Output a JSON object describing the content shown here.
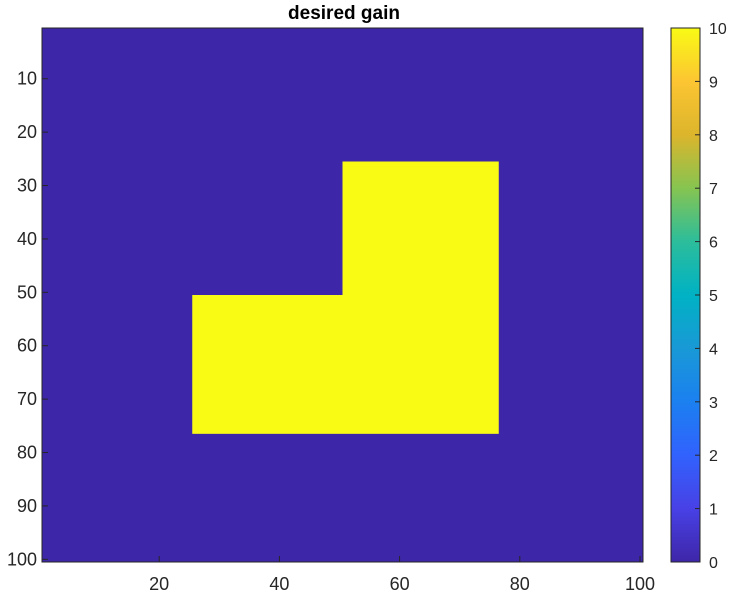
{
  "chart_data": {
    "type": "heatmap",
    "title": "desired gain",
    "xlabel": "",
    "ylabel": "",
    "x_range": [
      0.5,
      100.5
    ],
    "y_range": [
      0.5,
      100.5
    ],
    "y_reversed": true,
    "x_ticks": [
      20,
      40,
      60,
      80,
      100
    ],
    "y_ticks": [
      10,
      20,
      30,
      40,
      50,
      60,
      70,
      80,
      90,
      100
    ],
    "background_value": 0,
    "regions": [
      {
        "value": 10,
        "x_range": [
          26,
          76
        ],
        "y_range": [
          51,
          76
        ]
      },
      {
        "value": 10,
        "x_range": [
          51,
          76
        ],
        "y_range": [
          26,
          50
        ]
      }
    ],
    "colorbar": {
      "range": [
        0,
        10
      ],
      "ticks": [
        0,
        1,
        2,
        3,
        4,
        5,
        6,
        7,
        8,
        9,
        10
      ],
      "colormap": "parula"
    },
    "colors": {
      "low": "#3e26a8",
      "high": "#f9fb15"
    },
    "grid": false
  }
}
